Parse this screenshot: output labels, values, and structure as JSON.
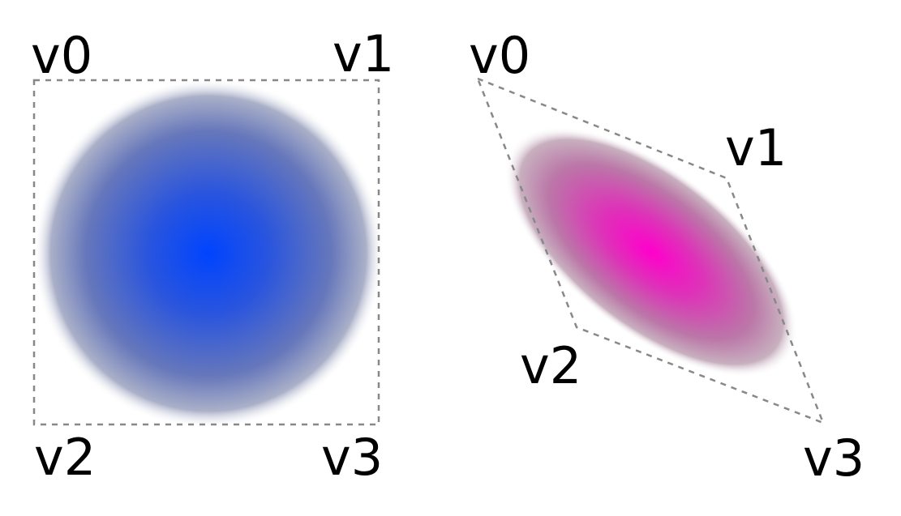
{
  "left_quad": {
    "labels": {
      "v0": "v0",
      "v1": "v1",
      "v2": "v2",
      "v3": "v3"
    },
    "center_color": "#0044ff",
    "mid_color": "#3a5ccc",
    "edge_color": "#9aa0b8"
  },
  "right_quad": {
    "labels": {
      "v0": "v0",
      "v1": "v1",
      "v2": "v2",
      "v3": "v3"
    },
    "center_color": "#ff00cc",
    "mid_color": "#cc44aa",
    "edge_color": "#b8a0b0"
  },
  "outline_color": "#888888"
}
